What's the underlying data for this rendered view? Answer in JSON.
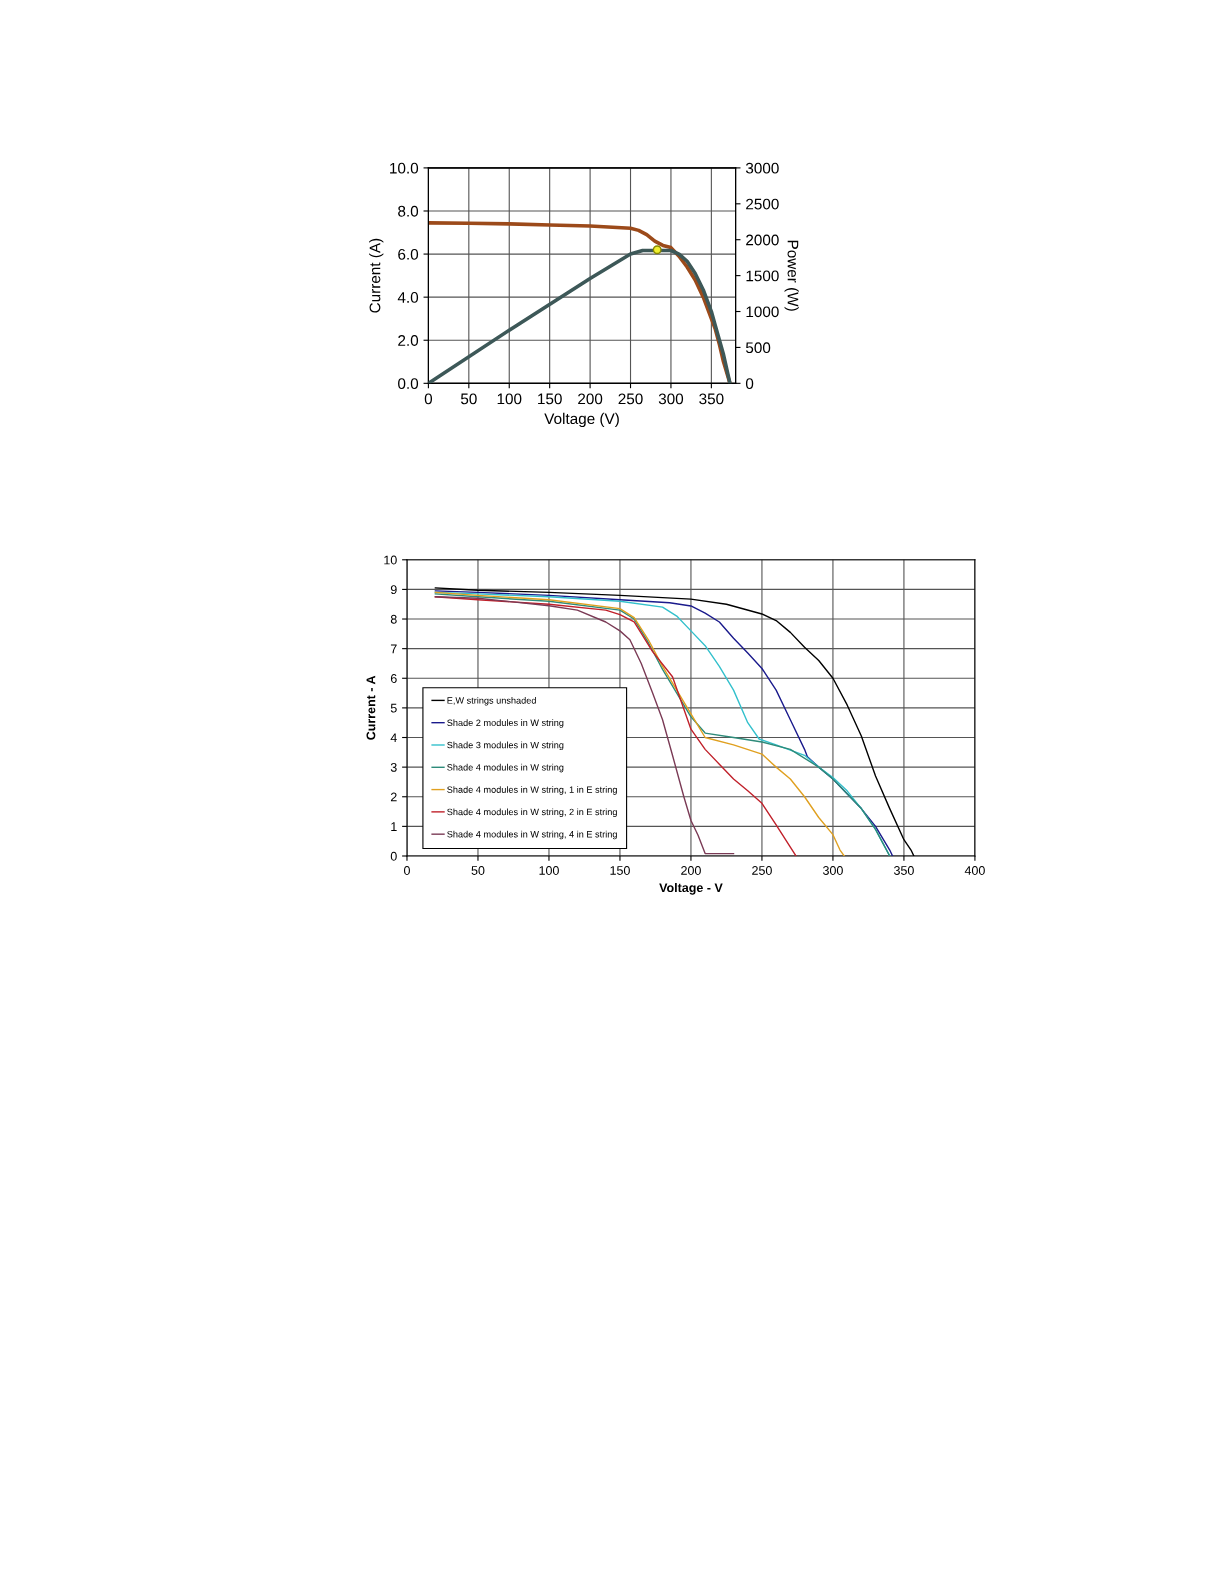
{
  "chart_data": [
    {
      "type": "line",
      "xlabel": "Voltage (V)",
      "ylabel": "Current (A)",
      "y2label": "Power (W)",
      "xlim": [
        0,
        380
      ],
      "xticks": [
        0,
        50,
        100,
        150,
        200,
        250,
        300,
        350
      ],
      "ylim": [
        0,
        10
      ],
      "yticks": [
        {
          "value": 0,
          "label": "0.0"
        },
        {
          "value": 2,
          "label": "2.0"
        },
        {
          "value": 4,
          "label": "4.0"
        },
        {
          "value": 6,
          "label": "6.0"
        },
        {
          "value": 8,
          "label": "8.0"
        },
        {
          "value": 10,
          "label": "10.0"
        }
      ],
      "y2lim": [
        0,
        3000
      ],
      "y2ticks": [
        0,
        500,
        1000,
        1500,
        2000,
        2500,
        3000
      ],
      "grid": true,
      "legend": false,
      "series": [
        {
          "color": "#9c4a1a",
          "x": [
            0,
            50,
            100,
            150,
            200,
            250,
            260,
            270,
            280,
            290,
            300,
            310,
            320,
            330,
            340,
            350,
            355,
            360,
            365,
            373
          ],
          "values": [
            7.45,
            7.43,
            7.4,
            7.35,
            7.3,
            7.2,
            7.1,
            6.9,
            6.6,
            6.4,
            6.3,
            5.9,
            5.4,
            4.8,
            4.0,
            3.0,
            2.5,
            1.8,
            1.0,
            0
          ]
        },
        {
          "color": "#3d5858",
          "axis": "y2",
          "x": [
            0,
            100,
            200,
            250,
            265,
            280,
            300,
            310,
            320,
            330,
            340,
            350,
            355,
            360,
            365,
            373
          ],
          "values": [
            0,
            740,
            1460,
            1800,
            1850,
            1850,
            1850,
            1800,
            1700,
            1530,
            1300,
            1000,
            800,
            600,
            400,
            0
          ]
        },
        {
          "type": "scatter",
          "axis": "y2",
          "marker": "circle",
          "color": "#f0f030",
          "x": [
            283
          ],
          "values": [
            1860
          ]
        }
      ]
    },
    {
      "type": "line",
      "xlabel": "Voltage - V",
      "ylabel": "Current - A",
      "xlim": [
        0,
        400
      ],
      "xticks": [
        0,
        50,
        100,
        150,
        200,
        250,
        300,
        350,
        400
      ],
      "ylim": [
        0,
        10
      ],
      "yticks": [
        0,
        1,
        2,
        3,
        4,
        5,
        6,
        7,
        8,
        9,
        10
      ],
      "grid": true,
      "legend": "bottom left",
      "series": [
        {
          "name": "E,W strings unshaded",
          "color": "#000000",
          "x": [
            20,
            50,
            100,
            150,
            200,
            225,
            250,
            260,
            270,
            280,
            290,
            300,
            310,
            320,
            330,
            340,
            350,
            355,
            357
          ],
          "values": [
            9.05,
            8.97,
            8.9,
            8.8,
            8.67,
            8.5,
            8.17,
            7.95,
            7.55,
            7.05,
            6.6,
            6.0,
            5.1,
            4.05,
            2.7,
            1.6,
            0.55,
            0.2,
            0
          ]
        },
        {
          "name": "Shade 2 modules in W string",
          "color": "#1a1a8c",
          "x": [
            20,
            50,
            100,
            150,
            185,
            200,
            210,
            220,
            230,
            240,
            250,
            260,
            270,
            280,
            282,
            290,
            300,
            310,
            320,
            330,
            340,
            342
          ],
          "values": [
            8.95,
            8.9,
            8.8,
            8.65,
            8.55,
            8.44,
            8.2,
            7.9,
            7.35,
            6.85,
            6.33,
            5.6,
            4.6,
            3.6,
            3.35,
            3.0,
            2.6,
            2.1,
            1.6,
            1.0,
            0.2,
            0
          ]
        },
        {
          "name": "Shade 3 modules in W string",
          "color": "#33c0cc",
          "x": [
            20,
            50,
            100,
            150,
            180,
            190,
            200,
            210,
            220,
            230,
            240,
            248,
            260,
            280,
            290,
            300,
            310,
            320,
            330,
            340
          ],
          "values": [
            8.9,
            8.85,
            8.75,
            8.6,
            8.4,
            8.1,
            7.6,
            7.1,
            6.4,
            5.6,
            4.5,
            3.95,
            3.75,
            3.4,
            3.0,
            2.65,
            2.2,
            1.6,
            0.9,
            0
          ]
        },
        {
          "name": "Shade 4 modules in W string",
          "color": "#2e8b7a",
          "x": [
            20,
            50,
            100,
            150,
            160,
            170,
            180,
            190,
            200,
            210,
            230,
            250,
            270,
            290,
            300,
            320,
            330,
            340
          ],
          "values": [
            8.85,
            8.75,
            8.6,
            8.3,
            8.0,
            7.2,
            6.3,
            5.5,
            4.7,
            4.15,
            4.0,
            3.85,
            3.6,
            3.0,
            2.6,
            1.6,
            0.9,
            0
          ]
        },
        {
          "name": "Shade 4 modules in W string, 1 in E string",
          "color": "#e0a020",
          "x": [
            20,
            50,
            100,
            150,
            160,
            170,
            180,
            190,
            200,
            210,
            230,
            250,
            260,
            270,
            280,
            290,
            300,
            305,
            308
          ],
          "values": [
            8.9,
            8.8,
            8.65,
            8.35,
            8.05,
            7.3,
            6.4,
            5.6,
            4.8,
            4.0,
            3.75,
            3.44,
            3.0,
            2.6,
            2.0,
            1.3,
            0.72,
            0.2,
            0
          ]
        },
        {
          "name": "Shade 4 modules in W string, 2 in E string",
          "color": "#c0202a",
          "x": [
            20,
            50,
            100,
            140,
            150,
            160,
            173,
            187,
            200,
            210,
            220,
            230,
            240,
            250,
            260,
            270,
            274
          ],
          "values": [
            8.75,
            8.65,
            8.5,
            8.3,
            8.15,
            7.9,
            6.9,
            6.05,
            4.28,
            3.6,
            3.1,
            2.6,
            2.2,
            1.78,
            1.05,
            0.3,
            0
          ]
        },
        {
          "name": "Shade 4 modules in W string, 4 in E string",
          "color": "#7a3a55",
          "x": [
            20,
            50,
            100,
            120,
            140,
            150,
            157,
            165,
            173,
            180,
            187,
            195,
            200,
            205,
            210,
            230
          ],
          "values": [
            8.75,
            8.7,
            8.45,
            8.3,
            7.9,
            7.6,
            7.3,
            6.5,
            5.5,
            4.6,
            3.4,
            2.0,
            1.2,
            0.7,
            0.08,
            0.08
          ]
        }
      ]
    }
  ]
}
